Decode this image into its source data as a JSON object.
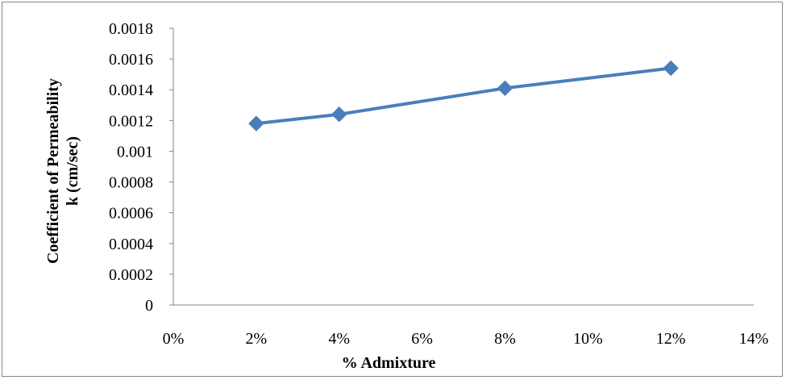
{
  "chart_data": {
    "type": "line",
    "title": "",
    "xlabel": "% Admixture",
    "ylabel_line1": "Coefficient of Permeability",
    "ylabel_line2": "k (cm/sec)",
    "xlim": [
      0,
      0.14
    ],
    "ylim": [
      0,
      0.0018
    ],
    "x_ticks": [
      0,
      0.02,
      0.04,
      0.06,
      0.08,
      0.1,
      0.12,
      0.14
    ],
    "x_tick_labels": [
      "0%",
      "2%",
      "4%",
      "6%",
      "8%",
      "10%",
      "12%",
      "14%"
    ],
    "y_ticks": [
      0,
      0.0002,
      0.0004,
      0.0006,
      0.0008,
      0.001,
      0.0012,
      0.0014,
      0.0016,
      0.0018
    ],
    "y_tick_labels": [
      "0",
      "0.0002",
      "0.0004",
      "0.0006",
      "0.0008",
      "0.001",
      "0.0012",
      "0.0014",
      "0.0016",
      "0.0018"
    ],
    "grid": false,
    "legend": false,
    "series": [
      {
        "x": [
          0.02,
          0.04,
          0.08,
          0.12
        ],
        "y": [
          0.00118,
          0.00124,
          0.00141,
          0.00154
        ],
        "color": "#4A7EBB",
        "marker": "diamond"
      }
    ]
  }
}
